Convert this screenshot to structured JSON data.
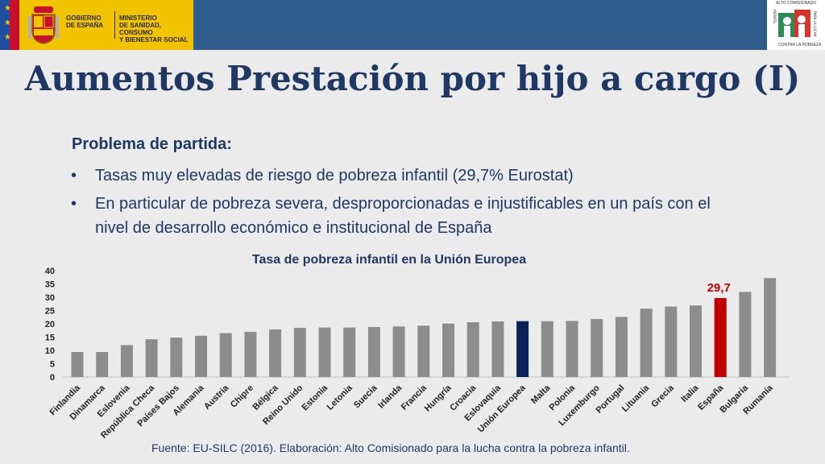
{
  "header": {
    "gob_line1": "GOBIERNO",
    "gob_line2": "DE ESPAÑA",
    "min_line1": "MINISTERIO",
    "min_line2": "DE SANIDAD, CONSUMO",
    "min_line3": "Y BIENESTAR SOCIAL",
    "logo_top_text": "ALTO COMISIONADO",
    "logo_side_text": "PARA LA LUCHA",
    "logo_vertical_text": "INFANTIL",
    "logo_bottom_text": "CONTRA LA POBREZA",
    "band_color": "#2f5d8c",
    "gov_color": "#f2c300"
  },
  "title": "Aumentos Prestación por hijo a cargo (I)",
  "subhead": "Problema de partida:",
  "bullets": [
    "Tasas muy elevadas de riesgo de pobreza infantil (29,7% Eurostat)",
    "En particular de pobreza severa, desproporcionadas e injustificables en un país con el nivel de desarrollo económico e institucional de España"
  ],
  "chart_data": {
    "type": "bar",
    "title": "Tasa de pobreza infantil en la Unión Europea",
    "categories": [
      "Finlandia",
      "Dinamarca",
      "Eslovenia",
      "República Checa",
      "Países Bajos",
      "Alemania",
      "Austria",
      "Chipre",
      "Bélgica",
      "Reino Unido",
      "Estonia",
      "Letonia",
      "Suecia",
      "Irlanda",
      "Francia",
      "Hungría",
      "Croacia",
      "Eslovaquia",
      "Unión Europea",
      "Malta",
      "Polonia",
      "Luxemburgo",
      "Portugal",
      "Lituania",
      "Grecia",
      "Italia",
      "España",
      "Bulgaria",
      "Rumanía"
    ],
    "values": [
      9.4,
      9.4,
      12.0,
      14.2,
      14.8,
      15.5,
      16.5,
      17.0,
      17.9,
      18.5,
      18.6,
      18.6,
      18.8,
      19.0,
      19.3,
      20.1,
      20.6,
      20.9,
      21.0,
      21.0,
      21.1,
      21.8,
      22.6,
      25.7,
      26.5,
      26.9,
      29.7,
      32.0,
      37.2
    ],
    "ylim": [
      0,
      40
    ],
    "yticks": [
      0,
      5,
      10,
      15,
      20,
      25,
      30,
      35,
      40
    ],
    "grid": false,
    "default_color": "#8c8c8c",
    "highlight": {
      "Unión Europea": "#0b2159",
      "España": "#c00000"
    },
    "annotation": {
      "category": "España",
      "text": "29,7",
      "color": "#c00000"
    }
  },
  "source": "Fuente: EU-SILC (2016).   Elaboración: Alto Comisionado para la lucha contra la pobreza infantil."
}
